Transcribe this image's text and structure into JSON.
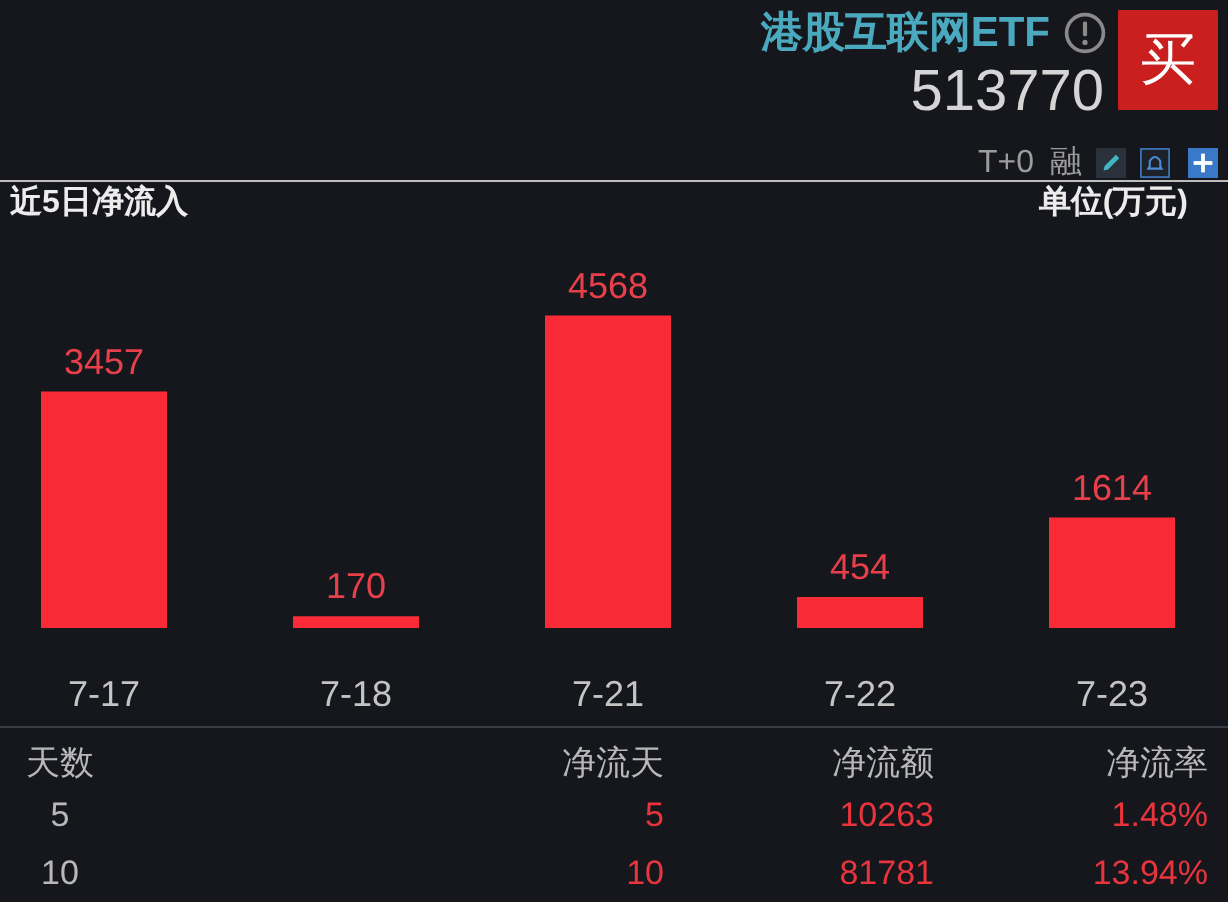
{
  "chart_data": {
    "type": "bar",
    "title": "近5日净流入",
    "ylabel": "单位(万元)",
    "categories": [
      "7-17",
      "7-18",
      "7-21",
      "7-22",
      "7-23"
    ],
    "values": [
      3457,
      170,
      4568,
      454,
      1614
    ],
    "color": "#fa2b36",
    "data_labels": true,
    "annotations": [
      "港股互联网ETF",
      "513770",
      "买",
      "T+0",
      "融",
      "天数",
      "净流天",
      "净流额",
      "净流率",
      "5",
      "5",
      "10263",
      "1.48%",
      "10",
      "10",
      "81781",
      "13.94%"
    ]
  }
}
